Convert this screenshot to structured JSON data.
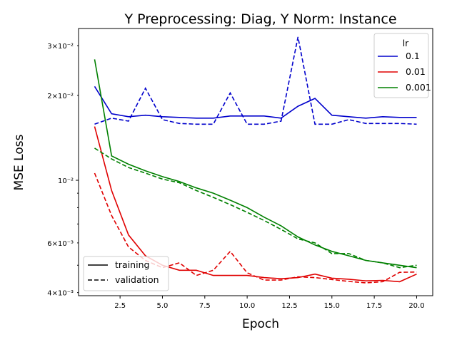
{
  "chart_data": {
    "type": "line",
    "title": "Y Preprocessing: Diag, Y Norm: Instance",
    "xlabel": "Epoch",
    "ylabel": "MSE Loss",
    "xlim": [
      0.05,
      20.95
    ],
    "ylim": [
      0.0039,
      0.0345
    ],
    "yscale": "log",
    "grid": false,
    "x": [
      1,
      2,
      3,
      4,
      5,
      6,
      7,
      8,
      9,
      10,
      11,
      12,
      13,
      14,
      15,
      16,
      17,
      18,
      19,
      20
    ],
    "x_ticks": [
      2.5,
      5.0,
      7.5,
      10.0,
      12.5,
      15.0,
      17.5,
      20.0
    ],
    "x_tick_labels": [
      "2.5",
      "5.0",
      "7.5",
      "10.0",
      "12.5",
      "15.0",
      "17.5",
      "20.0"
    ],
    "y_major_ticks": [
      0.01
    ],
    "y_major_tick_labels": [
      "10⁻²"
    ],
    "y_minor_ticks": [
      0.004,
      0.006,
      0.02,
      0.03
    ],
    "y_minor_tick_labels": [
      "4×10⁻³",
      "6×10⁻³",
      "2×10⁻²",
      "3×10⁻²"
    ],
    "series": [
      {
        "lr": "0.1",
        "split": "training",
        "color": "#0000cc",
        "values": [
          0.0215,
          0.0172,
          0.0168,
          0.017,
          0.0168,
          0.0167,
          0.0166,
          0.0166,
          0.0169,
          0.0169,
          0.0169,
          0.0166,
          0.0183,
          0.0195,
          0.017,
          0.0168,
          0.0166,
          0.0168,
          0.0167,
          0.0167
        ]
      },
      {
        "lr": "0.1",
        "split": "validation",
        "color": "#0000cc",
        "values": [
          0.0158,
          0.0166,
          0.0162,
          0.0212,
          0.0164,
          0.0159,
          0.0158,
          0.0158,
          0.0204,
          0.0158,
          0.0158,
          0.0162,
          0.0322,
          0.0158,
          0.0158,
          0.0164,
          0.0159,
          0.0159,
          0.0159,
          0.0158
        ]
      },
      {
        "lr": "0.01",
        "split": "training",
        "color": "#e00000",
        "values": [
          0.0155,
          0.0092,
          0.0064,
          0.0054,
          0.005,
          0.0048,
          0.0048,
          0.0046,
          0.0046,
          0.0046,
          0.00452,
          0.00448,
          0.00452,
          0.00465,
          0.0045,
          0.00446,
          0.0044,
          0.00442,
          0.00437,
          0.00465
        ]
      },
      {
        "lr": "0.01",
        "split": "validation",
        "color": "#e00000",
        "values": [
          0.0106,
          0.0075,
          0.0058,
          0.0052,
          0.0049,
          0.0051,
          0.0046,
          0.0048,
          0.0056,
          0.0047,
          0.00443,
          0.00443,
          0.00455,
          0.00452,
          0.00445,
          0.00438,
          0.00433,
          0.00437,
          0.00472,
          0.00473
        ]
      },
      {
        "lr": "0.001",
        "split": "training",
        "color": "#008000",
        "values": [
          0.0268,
          0.0122,
          0.0114,
          0.0108,
          0.0103,
          0.0099,
          0.0094,
          0.009,
          0.0085,
          0.008,
          0.0074,
          0.0069,
          0.0063,
          0.0059,
          0.0056,
          0.0054,
          0.0052,
          0.0051,
          0.005,
          0.0049
        ]
      },
      {
        "lr": "0.001",
        "split": "validation",
        "color": "#008000",
        "values": [
          0.013,
          0.0119,
          0.0111,
          0.0106,
          0.0101,
          0.0098,
          0.0092,
          0.0087,
          0.0082,
          0.0077,
          0.0072,
          0.0067,
          0.0062,
          0.006,
          0.0055,
          0.0055,
          0.0052,
          0.0051,
          0.0049,
          0.005
        ]
      }
    ],
    "legends": [
      {
        "title": "lr",
        "placement": "upper-right",
        "entries": [
          {
            "label": "0.1",
            "color": "#0000cc",
            "dash": "solid"
          },
          {
            "label": "0.01",
            "color": "#e00000",
            "dash": "solid"
          },
          {
            "label": "0.001",
            "color": "#008000",
            "dash": "solid"
          }
        ]
      },
      {
        "title": "",
        "placement": "lower-left",
        "entries": [
          {
            "label": "training",
            "color": "#000000",
            "dash": "solid"
          },
          {
            "label": "validation",
            "color": "#000000",
            "dash": "dashed"
          }
        ]
      }
    ]
  }
}
